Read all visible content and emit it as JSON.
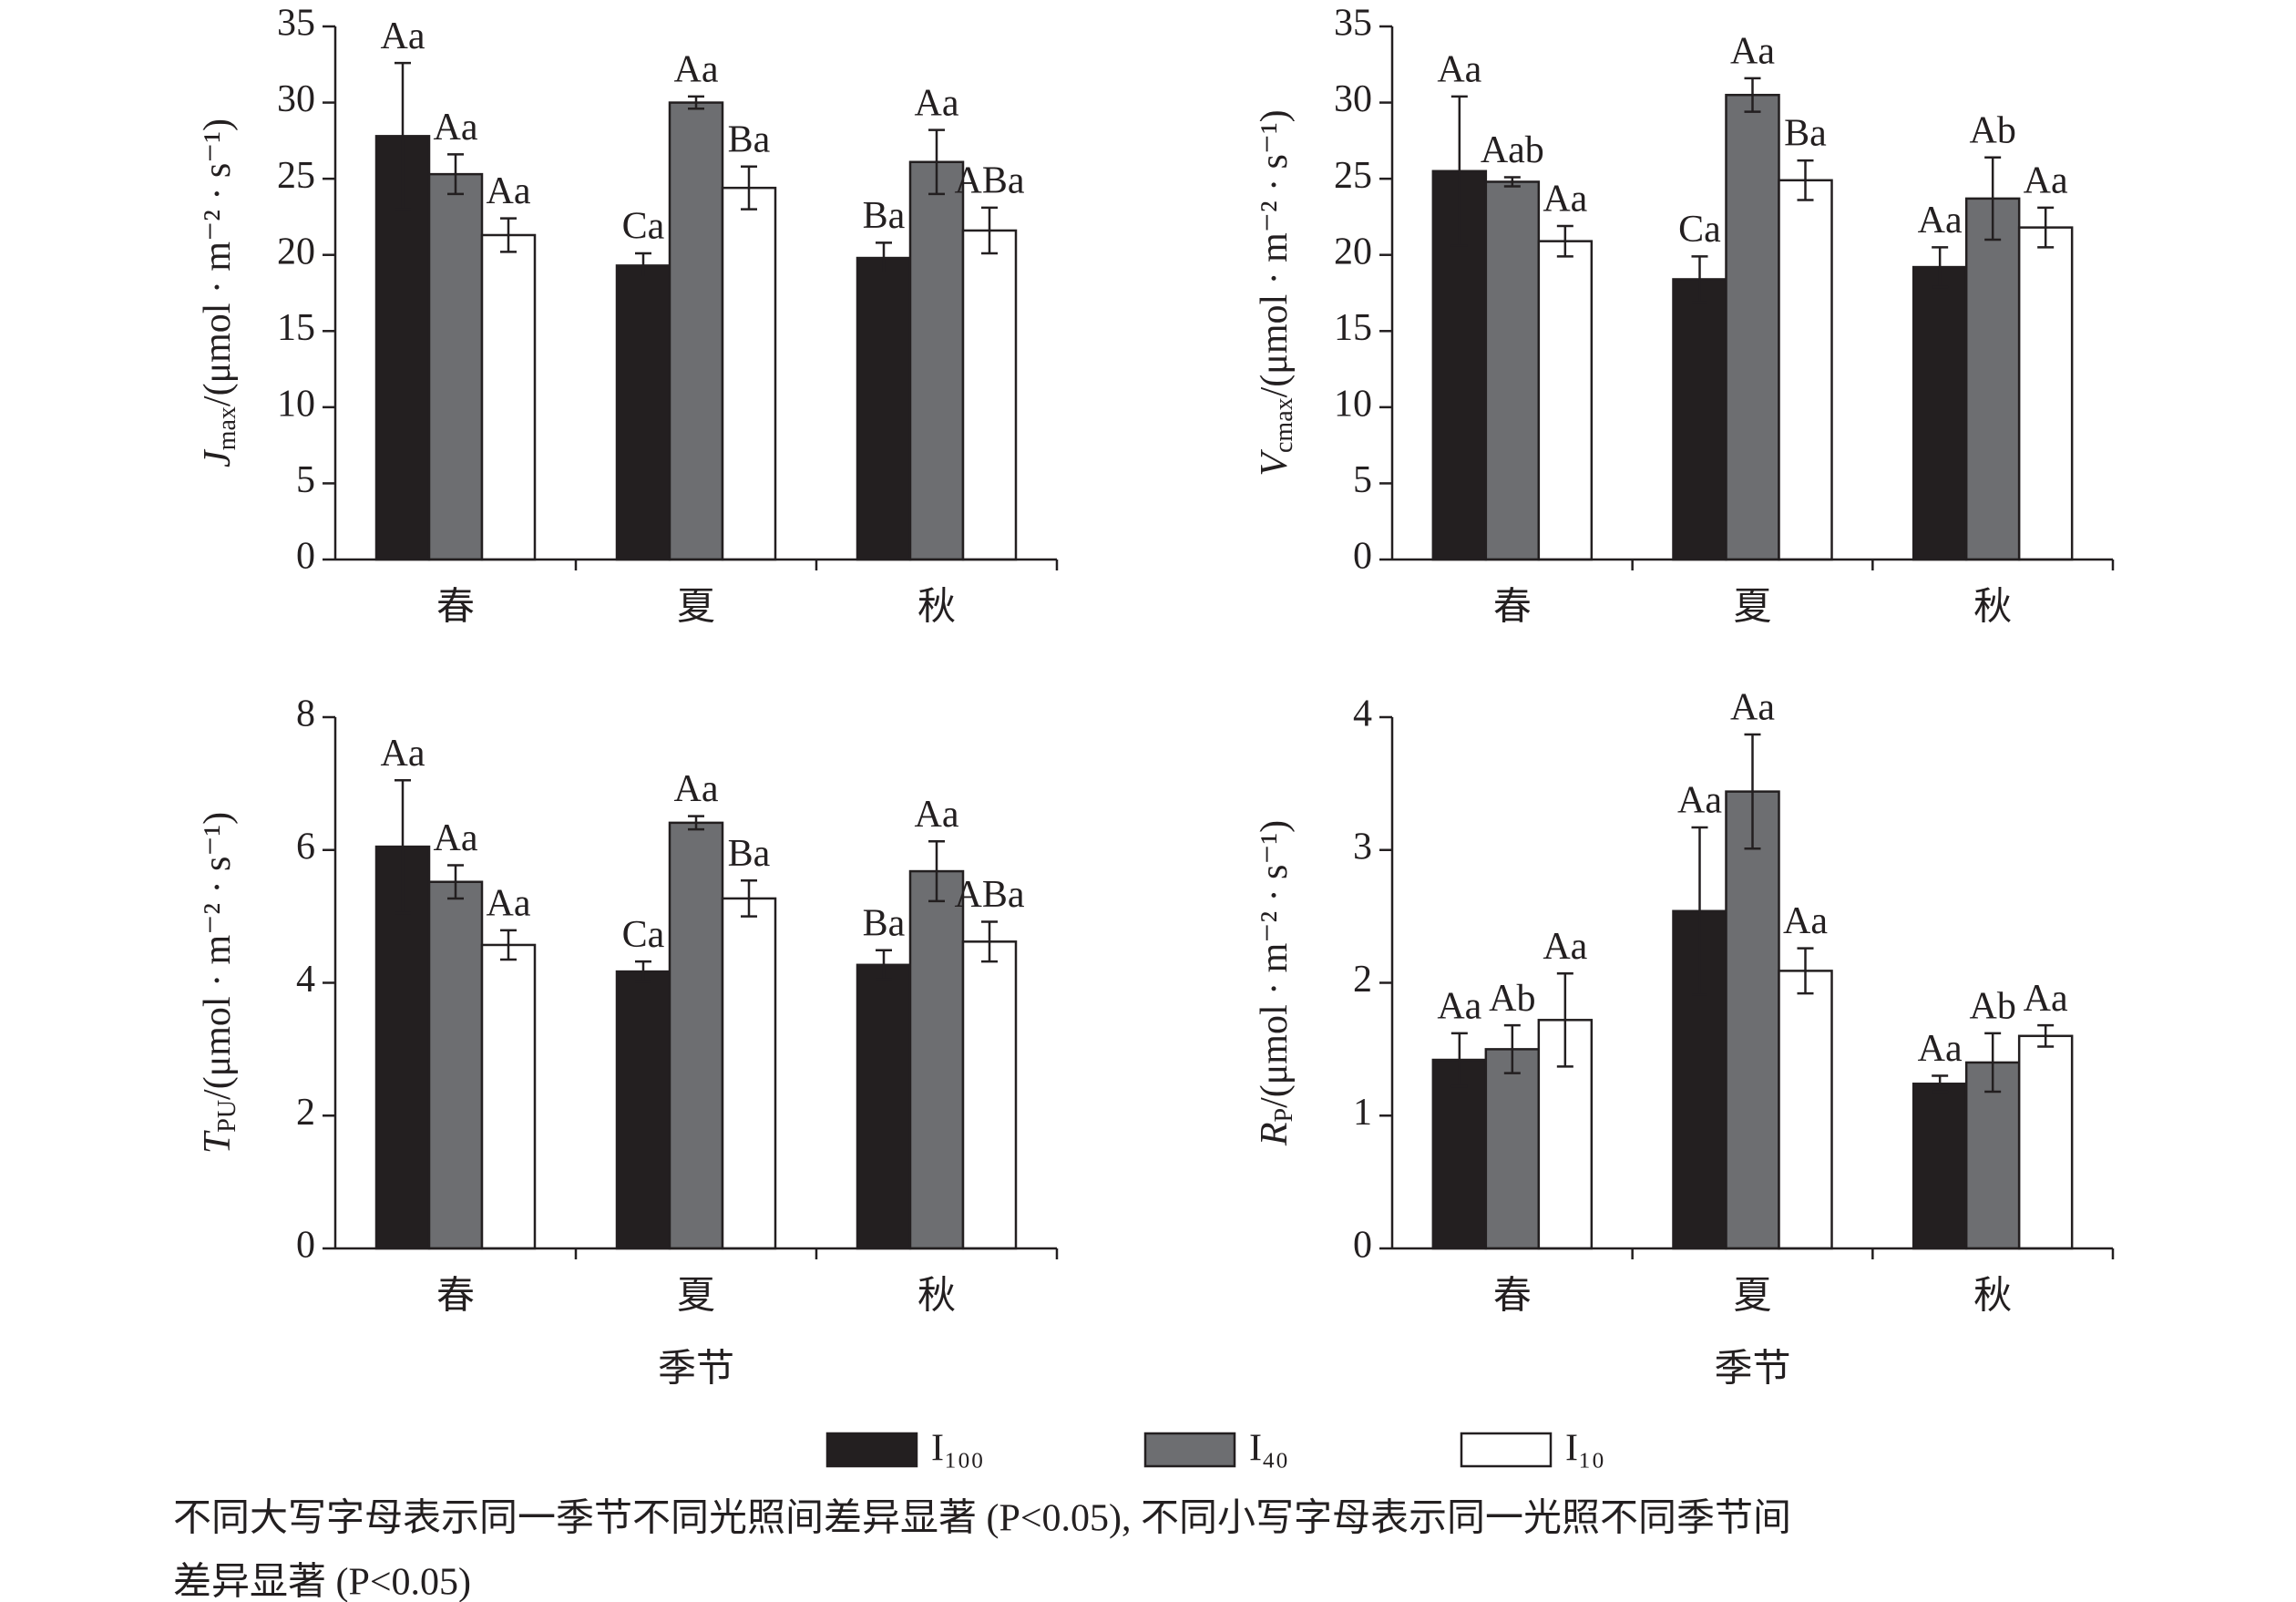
{
  "legend": [
    {
      "name": "I₁₀₀",
      "color": "#231f20"
    },
    {
      "name": "I₄₀",
      "color": "#6d6e71"
    },
    {
      "name": "I₁₀",
      "color": "#ffffff"
    }
  ],
  "note": [
    "不同大写字母表示同一季节不同光照间差异显著 (P<0.05), 不同小写字母表示同一光照不同季节间",
    "差异显著 (P<0.05)"
  ],
  "chart_data": [
    {
      "type": "bar",
      "y_label": {
        "symbol": "J",
        "sub": "max",
        "unit": "/(μmol · m⁻² · s⁻¹)"
      },
      "categories": [
        "春",
        "夏",
        "秋"
      ],
      "ylim": [
        0,
        35
      ],
      "yticks": [
        0,
        5,
        10,
        15,
        20,
        25,
        30,
        35
      ],
      "series": [
        {
          "values": [
            27.8,
            19.3,
            19.8
          ],
          "errors": [
            4.8,
            0.8,
            1.0
          ],
          "value_labels": [
            "Aa",
            "Ca",
            "Ba"
          ]
        },
        {
          "values": [
            25.3,
            30.0,
            26.1
          ],
          "errors": [
            1.3,
            0.4,
            2.1
          ],
          "value_labels": [
            "Aa",
            "Aa",
            "Aa"
          ]
        },
        {
          "values": [
            21.3,
            24.4,
            21.6
          ],
          "errors": [
            1.1,
            1.4,
            1.5
          ],
          "value_labels": [
            "Aa",
            "Ba",
            "ABa"
          ]
        }
      ]
    },
    {
      "type": "bar",
      "y_label": {
        "symbol": "V",
        "sub": "cmax",
        "unit": "/(μmol · m⁻² · s⁻¹)"
      },
      "categories": [
        "春",
        "夏",
        "秋"
      ],
      "ylim": [
        0,
        35
      ],
      "yticks": [
        0,
        5,
        10,
        15,
        20,
        25,
        30,
        35
      ],
      "series": [
        {
          "values": [
            25.5,
            18.4,
            19.2
          ],
          "errors": [
            4.9,
            1.5,
            1.3
          ],
          "value_labels": [
            "Aa",
            "Ca",
            "Aa"
          ]
        },
        {
          "values": [
            24.8,
            30.5,
            23.7
          ],
          "errors": [
            0.3,
            1.1,
            2.7
          ],
          "value_labels": [
            "Aab",
            "Aa",
            "Ab"
          ]
        },
        {
          "values": [
            20.9,
            24.9,
            21.8
          ],
          "errors": [
            1.0,
            1.3,
            1.3
          ],
          "value_labels": [
            "Aa",
            "Ba",
            "Aa"
          ]
        }
      ]
    },
    {
      "type": "bar",
      "y_label": {
        "symbol": "T",
        "sub": "PU",
        "unit": "/(μmol · m⁻² · s⁻¹)"
      },
      "x_label": "季节",
      "categories": [
        "春",
        "夏",
        "秋"
      ],
      "ylim": [
        0,
        8
      ],
      "yticks": [
        0,
        2,
        4,
        6,
        8
      ],
      "series": [
        {
          "values": [
            6.05,
            4.17,
            4.27
          ],
          "errors": [
            1.0,
            0.15,
            0.22
          ],
          "value_labels": [
            "Aa",
            "Ca",
            "Ba"
          ]
        },
        {
          "values": [
            5.52,
            6.41,
            5.68
          ],
          "errors": [
            0.25,
            0.1,
            0.45
          ],
          "value_labels": [
            "Aa",
            "Aa",
            "Aa"
          ]
        },
        {
          "values": [
            4.57,
            5.27,
            4.62
          ],
          "errors": [
            0.22,
            0.27,
            0.3
          ],
          "value_labels": [
            "Aa",
            "Ba",
            "ABa"
          ]
        }
      ]
    },
    {
      "type": "bar",
      "y_label": {
        "symbol": "R",
        "sub": "P",
        "unit": "/(μmol · m⁻² · s⁻¹)"
      },
      "x_label": "季节",
      "categories": [
        "春",
        "夏",
        "秋"
      ],
      "ylim": [
        0,
        4
      ],
      "yticks": [
        0,
        1,
        2,
        3,
        4
      ],
      "series": [
        {
          "values": [
            1.42,
            2.54,
            1.24
          ],
          "errors": [
            0.2,
            0.63,
            0.06
          ],
          "value_labels": [
            "Aa",
            "Aa",
            "Aa"
          ]
        },
        {
          "values": [
            1.5,
            3.44,
            1.4
          ],
          "errors": [
            0.18,
            0.43,
            0.22
          ],
          "value_labels": [
            "Ab",
            "Aa",
            "Ab"
          ]
        },
        {
          "values": [
            1.72,
            2.09,
            1.6
          ],
          "errors": [
            0.35,
            0.17,
            0.08
          ],
          "value_labels": [
            "Aa",
            "Aa",
            "Aa"
          ]
        }
      ]
    }
  ]
}
